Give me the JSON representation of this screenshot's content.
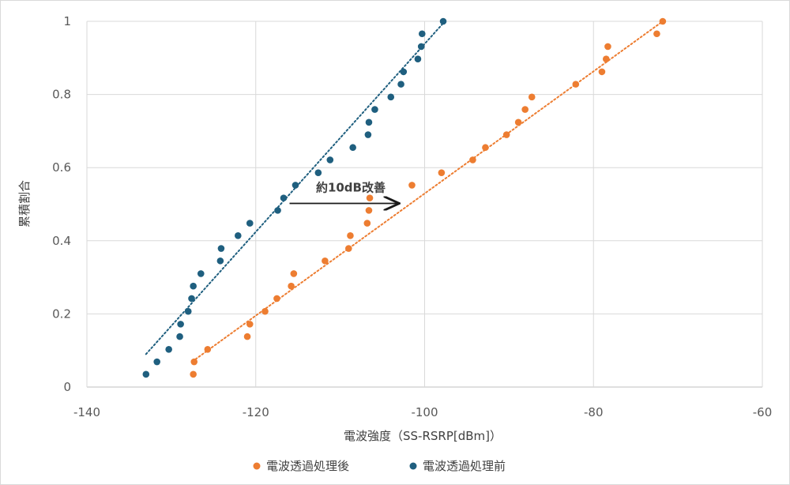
{
  "chart_data": {
    "type": "scatter",
    "xlabel": "電波強度（SS-RSRP[dBm]）",
    "ylabel": "累積割合",
    "xlim": [
      -140,
      -60
    ],
    "ylim": [
      0,
      1
    ],
    "xticks": [
      -140,
      -120,
      -100,
      -80,
      -60
    ],
    "yticks": [
      0,
      0.2,
      0.4,
      0.6,
      0.8,
      1
    ],
    "xtick_labels": [
      "-140",
      "-120",
      "-100",
      "-80",
      "-60"
    ],
    "ytick_labels": [
      "0",
      "0.2",
      "0.4",
      "0.6",
      "0.8",
      "1"
    ],
    "grid": "vertical and horizontal major gridlines",
    "legend_position": "bottom",
    "annotation": {
      "text": "約10dB改善",
      "from_x": -116,
      "to_x": -103,
      "y": 0.5
    },
    "series": [
      {
        "name": "電波透過処理後",
        "color": "#ED7D31",
        "trendline": {
          "style": "dotted",
          "from": [
            -127.5,
            0.07
          ],
          "to": [
            -71.8,
            1.0
          ]
        },
        "points": [
          [
            -127.4,
            0.035
          ],
          [
            -127.3,
            0.069
          ],
          [
            -125.7,
            0.103
          ],
          [
            -121.0,
            0.138
          ],
          [
            -120.7,
            0.172
          ],
          [
            -118.9,
            0.207
          ],
          [
            -117.5,
            0.242
          ],
          [
            -115.8,
            0.276
          ],
          [
            -115.5,
            0.31
          ],
          [
            -111.8,
            0.345
          ],
          [
            -109.0,
            0.379
          ],
          [
            -108.8,
            0.414
          ],
          [
            -106.8,
            0.448
          ],
          [
            -106.6,
            0.483
          ],
          [
            -106.5,
            0.517
          ],
          [
            -101.5,
            0.552
          ],
          [
            -98.0,
            0.586
          ],
          [
            -94.3,
            0.621
          ],
          [
            -92.8,
            0.655
          ],
          [
            -90.3,
            0.69
          ],
          [
            -88.9,
            0.724
          ],
          [
            -88.1,
            0.759
          ],
          [
            -87.3,
            0.793
          ],
          [
            -82.1,
            0.828
          ],
          [
            -79.0,
            0.862
          ],
          [
            -78.5,
            0.897
          ],
          [
            -78.3,
            0.931
          ],
          [
            -72.5,
            0.966
          ],
          [
            -71.8,
            1.0
          ]
        ]
      },
      {
        "name": "電波透過処理前",
        "color": "#1F5F7F",
        "trendline": {
          "style": "dotted",
          "from": [
            -133.0,
            0.09
          ],
          "to": [
            -97.6,
            1.0
          ]
        },
        "points": [
          [
            -133.0,
            0.035
          ],
          [
            -131.7,
            0.069
          ],
          [
            -130.3,
            0.103
          ],
          [
            -129.0,
            0.138
          ],
          [
            -128.9,
            0.172
          ],
          [
            -128.0,
            0.207
          ],
          [
            -127.6,
            0.242
          ],
          [
            -127.4,
            0.276
          ],
          [
            -126.5,
            0.31
          ],
          [
            -124.2,
            0.345
          ],
          [
            -124.1,
            0.379
          ],
          [
            -122.1,
            0.414
          ],
          [
            -120.7,
            0.448
          ],
          [
            -117.4,
            0.483
          ],
          [
            -116.7,
            0.517
          ],
          [
            -115.3,
            0.552
          ],
          [
            -112.6,
            0.586
          ],
          [
            -111.2,
            0.621
          ],
          [
            -108.5,
            0.655
          ],
          [
            -106.7,
            0.69
          ],
          [
            -106.6,
            0.724
          ],
          [
            -105.9,
            0.759
          ],
          [
            -104.0,
            0.793
          ],
          [
            -102.8,
            0.828
          ],
          [
            -102.5,
            0.862
          ],
          [
            -100.8,
            0.897
          ],
          [
            -100.4,
            0.931
          ],
          [
            -100.3,
            0.966
          ],
          [
            -97.8,
            1.0
          ]
        ]
      }
    ]
  }
}
